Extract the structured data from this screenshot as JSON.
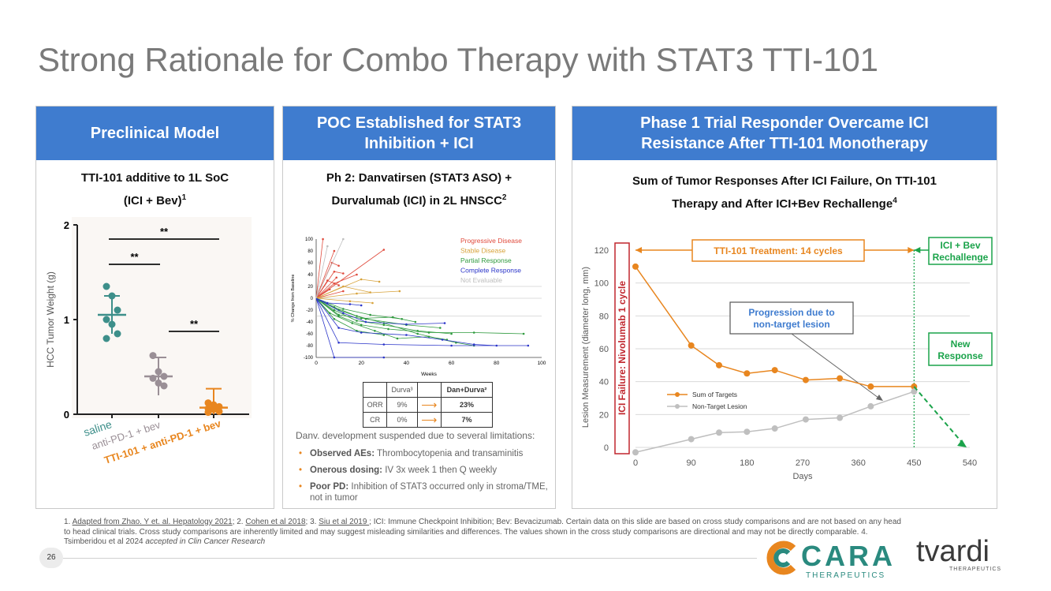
{
  "title": "Strong Rationale for Combo Therapy with STAT3 TTI-101",
  "colors": {
    "header_blue": "#3f7ccf",
    "orange": "#e8861f",
    "green": "#1aa34a",
    "teal": "#3d8f8a",
    "red": "#c0262d"
  },
  "panel1": {
    "header": "Preclinical Model",
    "subtitle_line1": "TTI-101 additive to 1L SoC",
    "subtitle_line2": "(ICI + Bev)",
    "subtitle_sup": "1",
    "chart_data": {
      "type": "scatter",
      "ylabel": "HCC Tumor Weight (g)",
      "ylim": [
        0,
        2
      ],
      "yticks": [
        "0",
        "1",
        "2"
      ],
      "categories": [
        "saline",
        "anti-PD-1 + bev",
        "TTI-101 + anti-PD-1 + bev"
      ],
      "points": [
        [
          1.35,
          1.25,
          1.1,
          1.0,
          0.95,
          0.85,
          0.8
        ],
        [
          0.62,
          0.45,
          0.4,
          0.38,
          0.33,
          0.3
        ],
        [
          0.12,
          0.1,
          0.08,
          0.06,
          0.05,
          0.03,
          0.02
        ]
      ],
      "means": [
        1.05,
        0.4,
        0.07
      ],
      "significance": [
        "**",
        "**",
        "**"
      ]
    }
  },
  "panel2": {
    "header_line1": "POC Established for STAT3",
    "header_line2": "Inhibition + ICI",
    "subtitle_line1": "Ph 2: Danvatirsen (STAT3 ASO) +",
    "subtitle_line2": "Durvalumab (ICI) in 2L HNSCC",
    "subtitle_sup": "2",
    "chart_data": {
      "type": "line",
      "xlabel": "Weeks",
      "ylabel": "% Change from Baseline",
      "xlim": [
        0,
        100
      ],
      "ylim": [
        -100,
        100
      ],
      "xticks": [
        "0",
        "20",
        "40",
        "60",
        "80",
        "100"
      ],
      "yticks": [
        "100",
        "80",
        "60",
        "40",
        "20",
        "0",
        "-20",
        "-40",
        "-60",
        "-80",
        "-100"
      ],
      "legend": [
        "Progressive Disease",
        "Stable Disease",
        "Partial Response",
        "Complete Response",
        "Not Evaluable"
      ],
      "series": [
        {
          "name": "Progressive Disease",
          "points": [
            [
              0,
              0
            ],
            [
              3,
              100
            ]
          ]
        },
        {
          "name": "Progressive Disease",
          "points": [
            [
              0,
              0
            ],
            [
              8,
              80
            ]
          ]
        },
        {
          "name": "Progressive Disease",
          "points": [
            [
              0,
              0
            ],
            [
              7,
              60
            ],
            [
              10,
              55
            ]
          ]
        },
        {
          "name": "Progressive Disease",
          "points": [
            [
              0,
              0
            ],
            [
              30,
              82
            ]
          ]
        },
        {
          "name": "Progressive Disease",
          "points": [
            [
              0,
              0
            ],
            [
              8,
              45
            ],
            [
              12,
              42
            ]
          ]
        },
        {
          "name": "Progressive Disease",
          "points": [
            [
              0,
              0
            ],
            [
              5,
              30
            ],
            [
              10,
              22
            ]
          ]
        },
        {
          "name": "Progressive Disease",
          "points": [
            [
              0,
              0
            ],
            [
              8,
              25
            ],
            [
              18,
              40
            ]
          ]
        },
        {
          "name": "Progressive Disease",
          "points": [
            [
              0,
              0
            ],
            [
              6,
              15
            ]
          ]
        },
        {
          "name": "Progressive Disease",
          "points": [
            [
              0,
              0
            ],
            [
              9,
              35
            ]
          ]
        },
        {
          "name": "Progressive Disease",
          "points": [
            [
              0,
              0
            ],
            [
              12,
              12
            ]
          ]
        },
        {
          "name": "Stable Disease",
          "points": [
            [
              0,
              0
            ],
            [
              20,
              32
            ],
            [
              28,
              28
            ]
          ]
        },
        {
          "name": "Stable Disease",
          "points": [
            [
              0,
              0
            ],
            [
              12,
              20
            ],
            [
              24,
              10
            ]
          ]
        },
        {
          "name": "Stable Disease",
          "points": [
            [
              0,
              0
            ],
            [
              18,
              8
            ],
            [
              37,
              12
            ]
          ]
        },
        {
          "name": "Stable Disease",
          "points": [
            [
              0,
              0
            ],
            [
              15,
              -5
            ],
            [
              25,
              -8
            ]
          ]
        },
        {
          "name": "Partial Response",
          "points": [
            [
              0,
              0
            ],
            [
              8,
              -20
            ],
            [
              18,
              -38
            ],
            [
              30,
              -45
            ],
            [
              45,
              -55
            ],
            [
              60,
              -60
            ]
          ]
        },
        {
          "name": "Partial Response",
          "points": [
            [
              0,
              0
            ],
            [
              10,
              -30
            ],
            [
              20,
              -45
            ],
            [
              32,
              -52
            ],
            [
              50,
              -58
            ],
            [
              70,
              -58
            ],
            [
              92,
              -60
            ]
          ]
        },
        {
          "name": "Partial Response",
          "points": [
            [
              0,
              0
            ],
            [
              8,
              -15
            ],
            [
              18,
              -30
            ],
            [
              30,
              -42
            ],
            [
              45,
              -60
            ],
            [
              62,
              -75
            ],
            [
              70,
              -80
            ]
          ]
        },
        {
          "name": "Partial Response",
          "points": [
            [
              0,
              0
            ],
            [
              6,
              -25
            ],
            [
              16,
              -42
            ],
            [
              26,
              -55
            ],
            [
              36,
              -68
            ],
            [
              50,
              -65
            ],
            [
              58,
              -70
            ]
          ]
        },
        {
          "name": "Partial Response",
          "points": [
            [
              0,
              0
            ],
            [
              10,
              -20
            ],
            [
              22,
              -35
            ],
            [
              40,
              -45
            ],
            [
              55,
              -50
            ]
          ]
        },
        {
          "name": "Partial Response",
          "points": [
            [
              0,
              0
            ],
            [
              8,
              -35
            ],
            [
              18,
              -55
            ],
            [
              30,
              -62
            ]
          ]
        },
        {
          "name": "Partial Response",
          "points": [
            [
              0,
              0
            ],
            [
              12,
              -18
            ],
            [
              24,
              -28
            ],
            [
              38,
              -35
            ]
          ]
        },
        {
          "name": "Partial Response",
          "points": [
            [
              0,
              0
            ],
            [
              10,
              -28
            ],
            [
              20,
              -34
            ],
            [
              34,
              -32
            ],
            [
              44,
              -40
            ]
          ]
        },
        {
          "name": "Complete Response",
          "points": [
            [
              0,
              0
            ],
            [
              8,
              -100
            ],
            [
              30,
              -100
            ]
          ]
        },
        {
          "name": "Complete Response",
          "points": [
            [
              0,
              0
            ],
            [
              10,
              -75
            ],
            [
              30,
              -78
            ],
            [
              60,
              -80
            ],
            [
              94,
              -80
            ]
          ]
        },
        {
          "name": "Complete Response",
          "points": [
            [
              0,
              0
            ],
            [
              10,
              -50
            ],
            [
              20,
              -58
            ],
            [
              40,
              -62
            ],
            [
              56,
              -70
            ],
            [
              70,
              -78
            ],
            [
              80,
              -80
            ]
          ]
        },
        {
          "name": "Complete Response",
          "points": [
            [
              0,
              0
            ],
            [
              12,
              -25
            ],
            [
              22,
              -40
            ],
            [
              40,
              -44
            ],
            [
              57,
              -42
            ]
          ]
        },
        {
          "name": "Complete Response",
          "points": [
            [
              0,
              0
            ],
            [
              5,
              -8
            ],
            [
              15,
              -10
            ],
            [
              20,
              -12
            ]
          ]
        },
        {
          "name": "Not Evaluable",
          "points": [
            [
              0,
              0
            ],
            [
              5,
              88
            ]
          ]
        },
        {
          "name": "Not Evaluable",
          "points": [
            [
              0,
              0
            ],
            [
              12,
              100
            ]
          ]
        }
      ]
    },
    "table": {
      "headers": [
        "",
        "Durva³",
        "",
        "Dan+Durva²"
      ],
      "rows": [
        {
          "label": "ORR",
          "a": "9%",
          "b": "23%"
        },
        {
          "label": "CR",
          "a": "0%",
          "b": "7%"
        }
      ]
    },
    "note": "Danv. development suspended due to several limitations:",
    "bullets": [
      {
        "bold": "Observed AEs:",
        "text": " Thrombocytopenia and transaminitis"
      },
      {
        "bold": "Onerous dosing:",
        "text": " IV 3x week 1 then Q weekly"
      },
      {
        "bold": "Poor PD:",
        "text": " Inhibition of STAT3 occurred only in stroma/TME, not in tumor"
      }
    ]
  },
  "panel3": {
    "header_line1": "Phase 1 Trial Responder Overcame ICI",
    "header_line2": "Resistance After TTI-101 Monotherapy",
    "subtitle_line1": "Sum of Tumor Responses After ICI Failure, On TTI-101",
    "subtitle_line2": "Therapy and After ICI+Bev Rechallenge",
    "subtitle_sup": "4",
    "chart_data": {
      "type": "line",
      "xlabel": "Days",
      "ylabel": "Lesion Measurement (diameter long, mm)",
      "xlim": [
        0,
        540
      ],
      "ylim": [
        0,
        120
      ],
      "xticks": [
        "0",
        "90",
        "180",
        "270",
        "360",
        "450",
        "540"
      ],
      "yticks": [
        "0",
        "20",
        "40",
        "60",
        "80",
        "100",
        "120"
      ],
      "series": [
        {
          "name": "Sum of Targets",
          "x": [
            0,
            90,
            135,
            180,
            225,
            275,
            330,
            380,
            450
          ],
          "y": [
            110,
            62,
            50,
            45,
            47,
            41,
            42,
            37,
            37
          ]
        },
        {
          "name": "Non-Target Lesion",
          "x": [
            0,
            90,
            135,
            180,
            225,
            275,
            330,
            380,
            450
          ],
          "y": [
            -3,
            5,
            9,
            9.5,
            11.5,
            17,
            18,
            25,
            34
          ]
        }
      ],
      "rechallenge_day": 450,
      "projection": {
        "from": [
          450,
          37
        ],
        "to": [
          535,
          0
        ]
      },
      "annotations": {
        "ici_failure": "ICI Failure: Nivolumab 1 cycle",
        "tti_treatment": "TTI-101 Treatment: 14 cycles",
        "rechallenge_line1": "ICI + Bev",
        "rechallenge_line2": "Rechallenge",
        "progression_line1": "Progression due to",
        "progression_line2": "non-target lesion",
        "new_response_line1": "New",
        "new_response_line2": "Response"
      }
    }
  },
  "footnote": {
    "p1": "1. ",
    "ref1": "Adapted from Zhao. Y et. al. Hepatology 2021",
    "p2": "; 2. ",
    "ref2": "Cohen et al 2018",
    "p3": "; 3. ",
    "ref3": "Siu et al 2019 ",
    "p4": "; ICI: Immune Checkpoint Inhibition; Bev: Bevacizumab. Certain data on this slide are based on cross study comparisons and are not based on any head to head clinical trials. Cross study comparisons are inherently limited and may suggest misleading similarities and differences. The values shown in the cross study comparisons are directional and may not be directly comparable. 4. Tsimberidou et al 2024 ",
    "italic": "accepted in Clin Cancer Research"
  },
  "page_number": "26",
  "logos": {
    "cara": "CARA",
    "cara_sub": "THERAPEUTICS",
    "tvardi": "tvardi",
    "tvardi_sub": "THERAPEUTICS"
  }
}
